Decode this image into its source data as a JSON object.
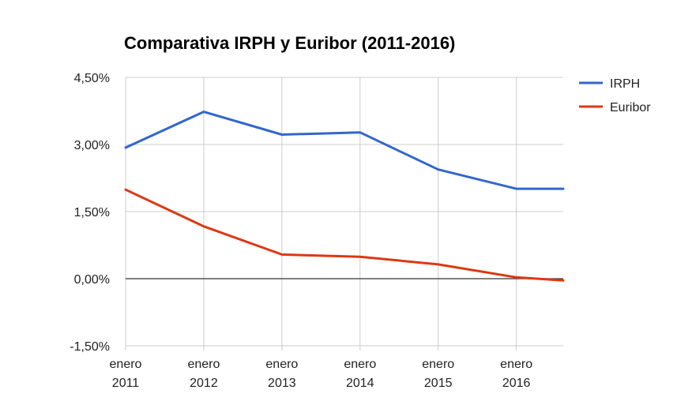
{
  "chart_data": {
    "type": "line",
    "title": "Comparativa IRPH y Euribor (2011-2016)",
    "xlabel": "",
    "ylabel": "",
    "x": [
      2011,
      2012,
      2013,
      2014,
      2015,
      2016,
      2016.6
    ],
    "x_ticks": [
      {
        "value": 2011,
        "line1": "enero",
        "line2": "2011"
      },
      {
        "value": 2012,
        "line1": "enero",
        "line2": "2012"
      },
      {
        "value": 2013,
        "line1": "enero",
        "line2": "2013"
      },
      {
        "value": 2014,
        "line1": "enero",
        "line2": "2014"
      },
      {
        "value": 2015,
        "line1": "enero",
        "line2": "2015"
      },
      {
        "value": 2016,
        "line1": "enero",
        "line2": "2016"
      }
    ],
    "xlim": [
      2011,
      2016.6
    ],
    "ylim": [
      -1.5,
      4.5
    ],
    "y_ticks": [
      {
        "value": 4.5,
        "label": "4,50%"
      },
      {
        "value": 3.0,
        "label": "3,00%"
      },
      {
        "value": 1.5,
        "label": "1,50%"
      },
      {
        "value": 0.0,
        "label": "0,00%"
      },
      {
        "value": -1.5,
        "label": "-1,50%"
      }
    ],
    "series": [
      {
        "name": "IRPH",
        "color": "#3366cc",
        "values": [
          2.93,
          3.73,
          3.22,
          3.27,
          2.44,
          2.01,
          2.01
        ]
      },
      {
        "name": "Euribor",
        "color": "#dc3912",
        "values": [
          1.99,
          1.17,
          0.54,
          0.49,
          0.32,
          0.03,
          -0.04
        ]
      }
    ],
    "grid": true,
    "legend_position": "right"
  }
}
